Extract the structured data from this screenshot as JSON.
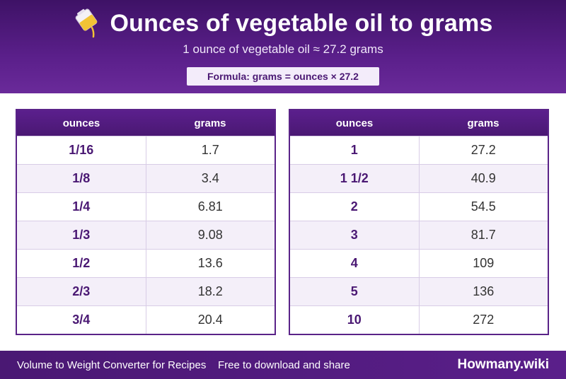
{
  "header": {
    "title": "Ounces of vegetable oil to grams",
    "icon": "oil-pouring-icon",
    "subtitle": "1 ounce of vegetable oil ≈ 27.2 grams",
    "formula": "Formula: grams = ounces × 27.2"
  },
  "tables": {
    "left": {
      "columns": [
        "ounces",
        "grams"
      ],
      "rows": [
        [
          "1/16",
          "1.7"
        ],
        [
          "1/8",
          "3.4"
        ],
        [
          "1/4",
          "6.81"
        ],
        [
          "1/3",
          "9.08"
        ],
        [
          "1/2",
          "13.6"
        ],
        [
          "2/3",
          "18.2"
        ],
        [
          "3/4",
          "20.4"
        ]
      ]
    },
    "right": {
      "columns": [
        "ounces",
        "grams"
      ],
      "rows": [
        [
          "1",
          "27.2"
        ],
        [
          "1 1/2",
          "40.9"
        ],
        [
          "2",
          "54.5"
        ],
        [
          "3",
          "81.7"
        ],
        [
          "4",
          "109"
        ],
        [
          "5",
          "136"
        ],
        [
          "10",
          "272"
        ]
      ]
    }
  },
  "footer": {
    "left_text": "Volume to Weight Converter for Recipes",
    "middle_text": "Free to download and share",
    "brand": "Howmany.wiki"
  },
  "colors": {
    "primary": "#4a1873",
    "header_accent": "#6a2a9a",
    "row_alt": "#f4eff9"
  }
}
